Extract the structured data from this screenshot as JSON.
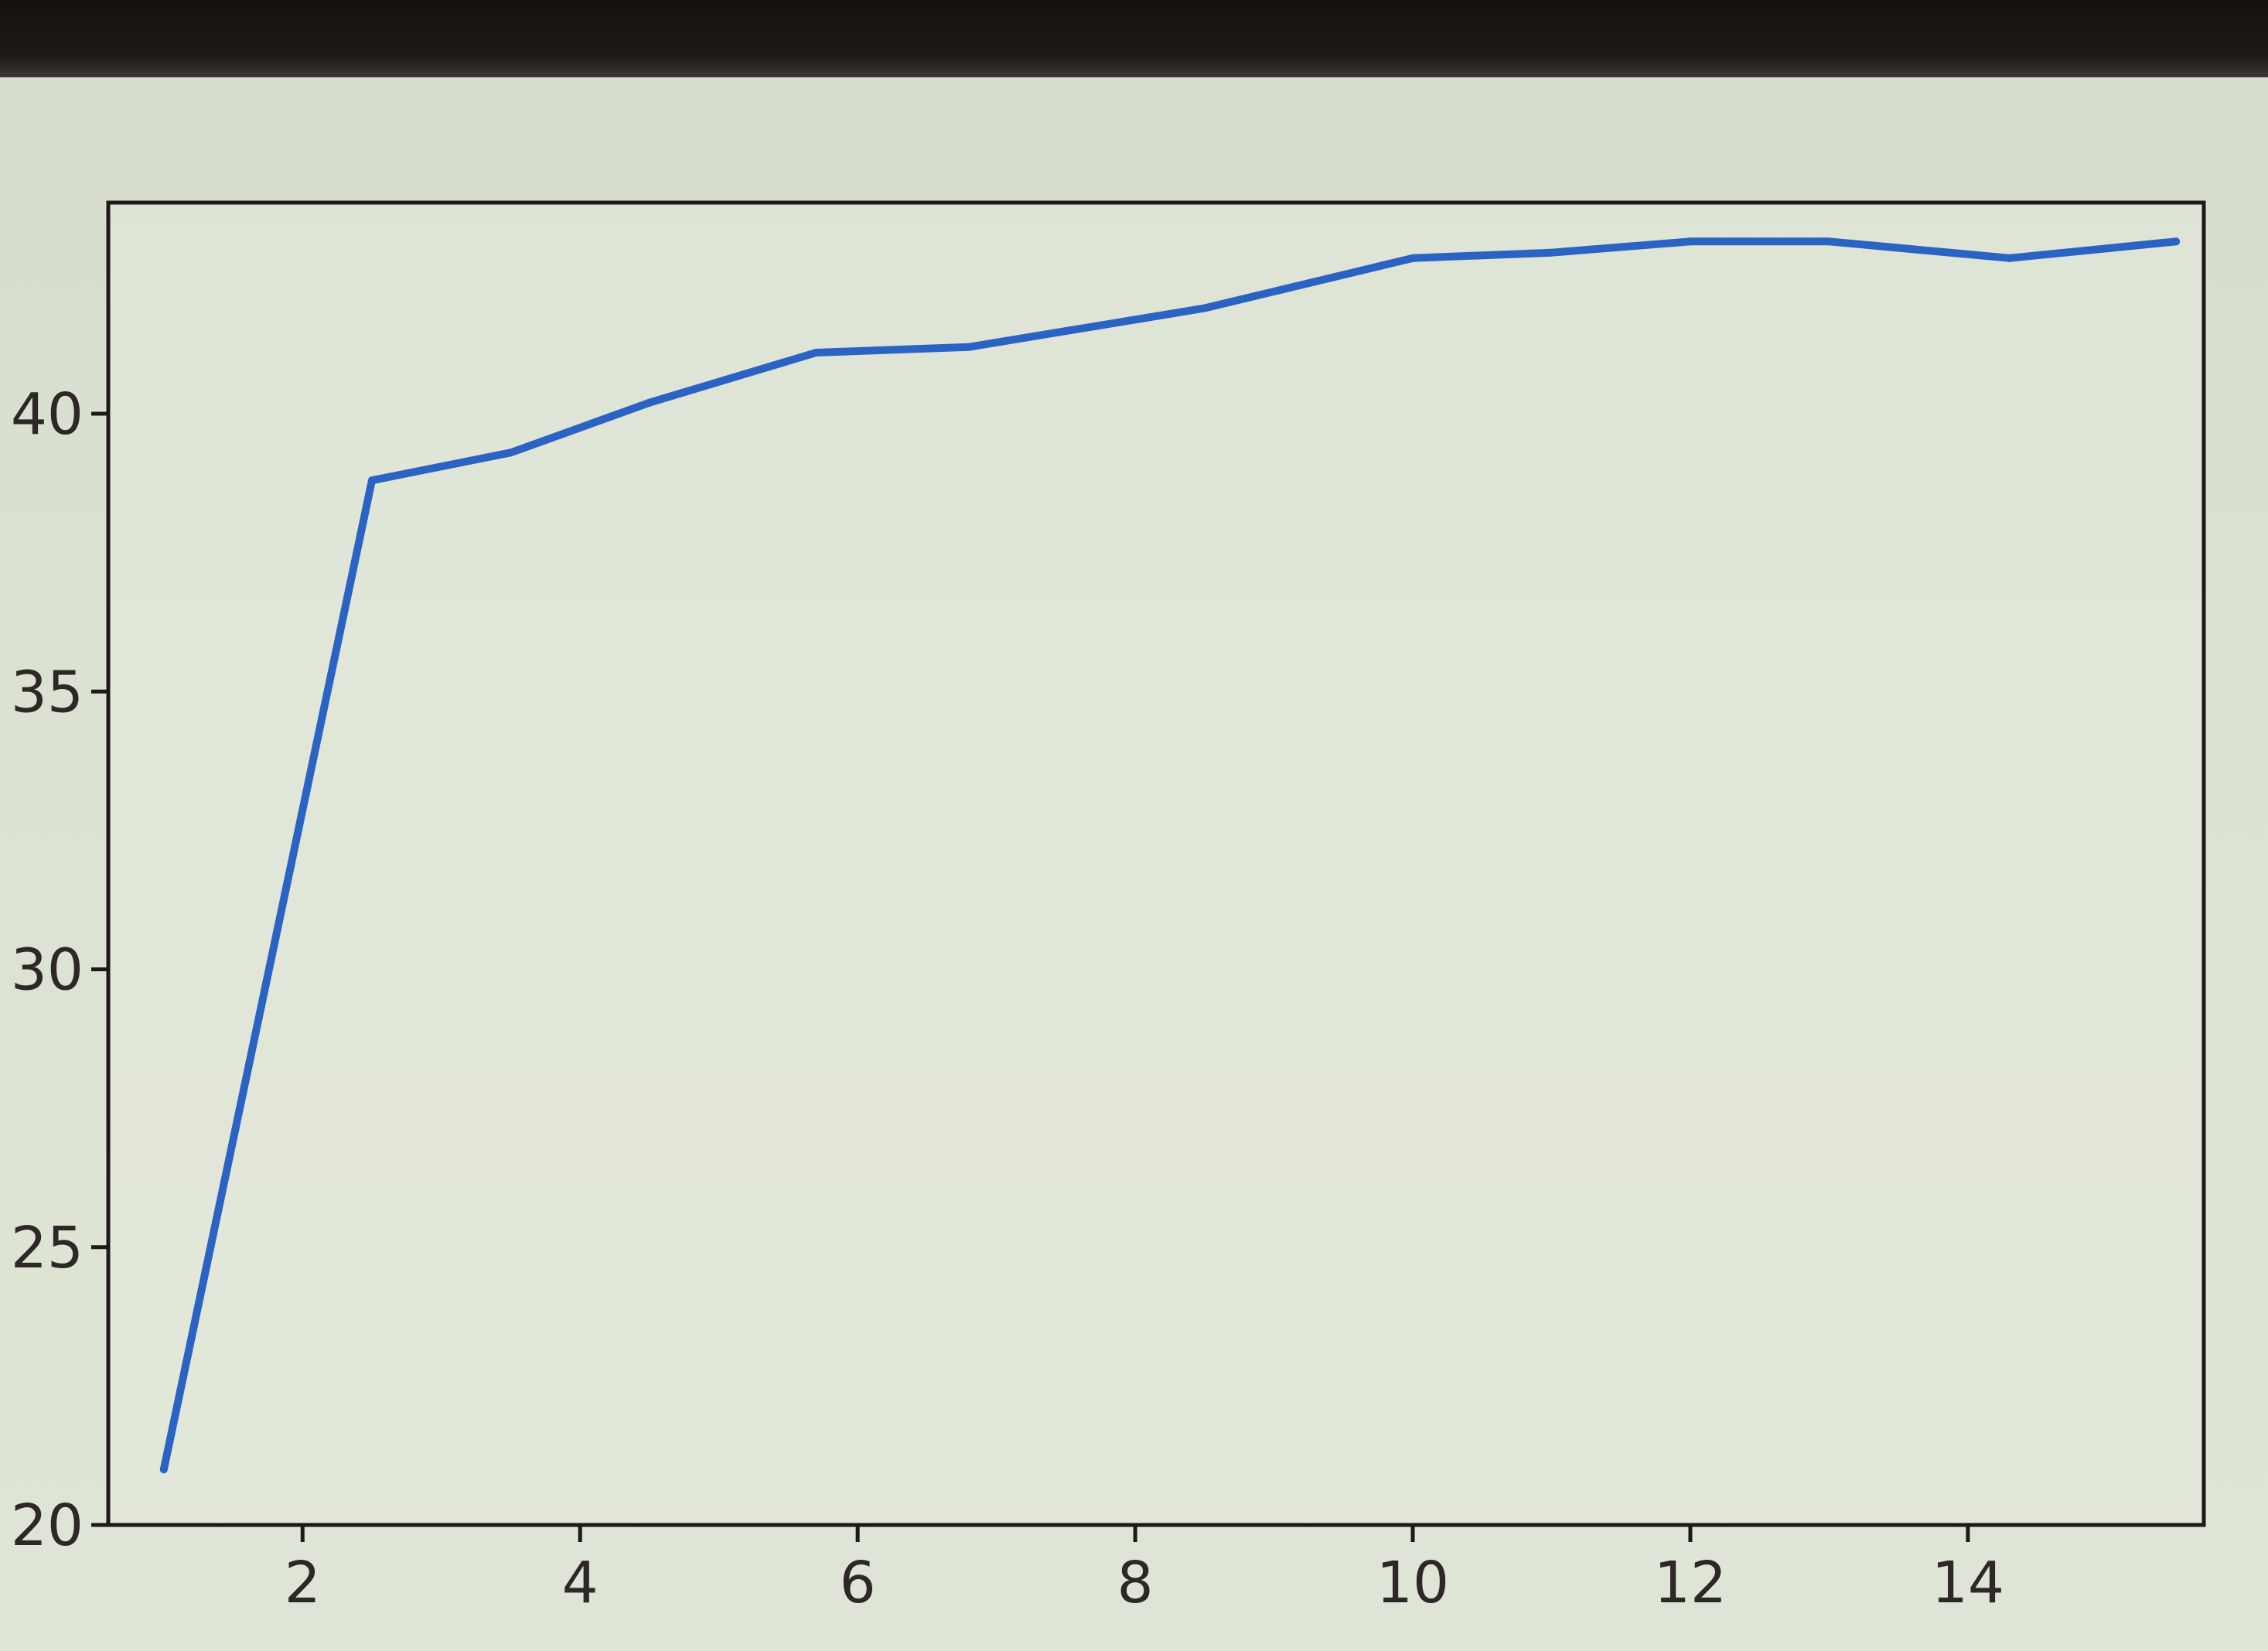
{
  "chart_data": {
    "type": "line",
    "title": "",
    "xlabel": "",
    "ylabel": "",
    "xlim": [
      0.6,
      15.7
    ],
    "ylim": [
      20,
      43.8
    ],
    "xticks": [
      2,
      4,
      6,
      8,
      10,
      12,
      14
    ],
    "yticks": [
      20,
      25,
      30,
      35,
      40
    ],
    "xtick_labels": [
      "2",
      "4",
      "6",
      "8",
      "10",
      "12",
      "14"
    ],
    "ytick_labels": [
      "20",
      "25",
      "30",
      "35",
      "40"
    ],
    "grid": false,
    "legend": "none",
    "series": [
      {
        "color": "#2a63c4",
        "x": [
          1,
          2.5,
          3.5,
          4.5,
          5.7,
          6.8,
          8.5,
          10,
          11,
          12,
          13,
          14.3,
          15.5
        ],
        "y": [
          21.0,
          38.8,
          39.3,
          40.2,
          41.1,
          41.2,
          41.9,
          42.8,
          42.9,
          43.1,
          43.1,
          42.8,
          43.1
        ]
      }
    ]
  }
}
